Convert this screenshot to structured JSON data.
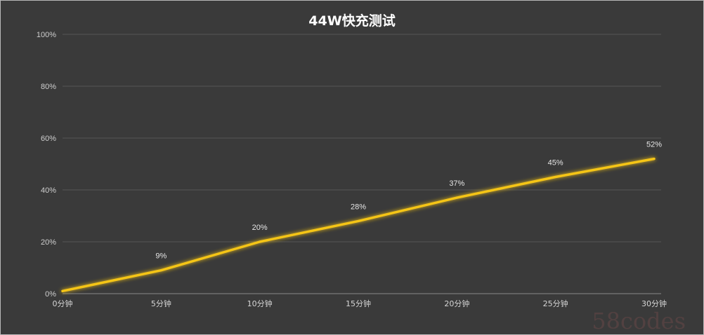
{
  "chart_data": {
    "type": "line",
    "title": "44W快充测试",
    "categories": [
      "0分钟",
      "5分钟",
      "10分钟",
      "15分钟",
      "20分钟",
      "25分钟",
      "30分钟"
    ],
    "series": [
      {
        "values": [
          1,
          9,
          20,
          28,
          37,
          45,
          52
        ],
        "data_labels": [
          "",
          "9%",
          "20%",
          "28%",
          "37%",
          "45%",
          "52%"
        ],
        "color": "#f5c518"
      }
    ],
    "y_ticks": [
      "0%",
      "20%",
      "40%",
      "60%",
      "80%",
      "100%"
    ],
    "ylim": [
      0,
      100
    ],
    "grid": true,
    "background": "#3a3a3a"
  },
  "watermark": "58codes"
}
